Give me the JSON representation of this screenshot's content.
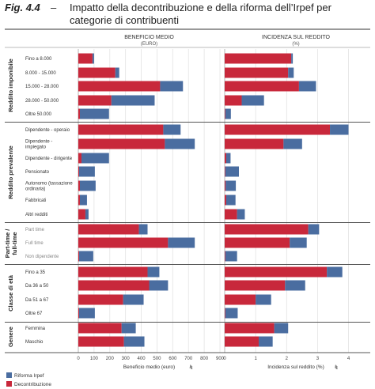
{
  "figure": {
    "label": "Fig. 4.4",
    "dash": "–",
    "title": "Impatto della decontribuzione e della riforma dell’Irpef per categorie di contribuenti"
  },
  "chart_data": {
    "type": "bar",
    "stacked": true,
    "orientation": "horizontal",
    "panels": [
      {
        "title": "BENEFICIO MEDIO",
        "subtitle": "(EURO)",
        "xlabel": "Beneficio medio (euro)",
        "xlim": [
          0,
          900
        ],
        "ticks": [
          "0",
          "100",
          "200",
          "300",
          "400",
          "500",
          "600",
          "700",
          "800",
          "900"
        ]
      },
      {
        "title": "INCIDENZA SUL REDDITO",
        "subtitle": "(%)",
        "xlabel": "Incidenza sul reddito (%)",
        "xlim": [
          0,
          4.6
        ],
        "ticks": [
          "0",
          "1",
          "2",
          "3",
          "4"
        ]
      }
    ],
    "series": [
      {
        "name": "Decontribuzione",
        "color": "#c8283b"
      },
      {
        "name": "Riforma Irpef",
        "color": "#4a6da0"
      }
    ],
    "legend_position": "bottom-left",
    "groups": [
      {
        "name": "Reddito imponibile",
        "rows": [
          {
            "label": "Fino a 8.000",
            "benefit": [
              90,
              10
            ],
            "incidence": [
              2.15,
              0.05
            ]
          },
          {
            "label": "8.000 - 15.000",
            "benefit": [
              235,
              25
            ],
            "incidence": [
              2.05,
              0.18
            ]
          },
          {
            "label": "15.000 - 28.000",
            "benefit": [
              520,
              145
            ],
            "incidence": [
              2.4,
              0.55
            ]
          },
          {
            "label": "28.000 - 50.000",
            "benefit": [
              210,
              275
            ],
            "incidence": [
              0.55,
              0.72
            ]
          },
          {
            "label": "Oltre 50.000",
            "benefit": [
              10,
              185
            ],
            "incidence": [
              0.02,
              0.18
            ]
          }
        ]
      },
      {
        "name": "Reddito prevalente",
        "rows": [
          {
            "label": "Dipendente - operaio",
            "benefit": [
              540,
              110
            ],
            "incidence": [
              3.4,
              0.6
            ]
          },
          {
            "label": "Dipendente - impiegato",
            "benefit": [
              550,
              190
            ],
            "incidence": [
              1.9,
              0.6
            ]
          },
          {
            "label": "Dipendente - dirigente",
            "benefit": [
              20,
              175
            ],
            "incidence": [
              0.05,
              0.14
            ]
          },
          {
            "label": "Pensionato",
            "benefit": [
              5,
              100
            ],
            "incidence": [
              0.02,
              0.44
            ]
          },
          {
            "label": "Autonomo (tassazione ordinaria)",
            "benefit": [
              10,
              100
            ],
            "incidence": [
              0.03,
              0.33
            ]
          },
          {
            "label": "Fabbricati",
            "benefit": [
              10,
              45
            ],
            "incidence": [
              0.05,
              0.3
            ]
          },
          {
            "label": "Altri redditi",
            "benefit": [
              45,
              20
            ],
            "incidence": [
              0.4,
              0.25
            ]
          }
        ]
      },
      {
        "name": "Part-time / full-time",
        "rows": [
          {
            "label": "Part time",
            "benefit": [
              385,
              55
            ],
            "incidence": [
              2.7,
              0.35
            ]
          },
          {
            "label": "Full time",
            "benefit": [
              570,
              170
            ],
            "incidence": [
              2.1,
              0.55
            ]
          },
          {
            "label": "Non dipendente",
            "benefit": [
              5,
              90
            ],
            "incidence": [
              0.02,
              0.38
            ]
          }
        ]
      },
      {
        "name": "Classe di età",
        "rows": [
          {
            "label": "Fino a 35",
            "benefit": [
              440,
              75
            ],
            "incidence": [
              3.3,
              0.5
            ]
          },
          {
            "label": "Da 36 a 50",
            "benefit": [
              450,
              120
            ],
            "incidence": [
              1.95,
              0.65
            ]
          },
          {
            "label": "Da 51 a 67",
            "benefit": [
              285,
              130
            ],
            "incidence": [
              1.0,
              0.5
            ]
          },
          {
            "label": "Oltre 67",
            "benefit": [
              5,
              100
            ],
            "incidence": [
              0.02,
              0.4
            ]
          }
        ]
      },
      {
        "name": "Genere",
        "rows": [
          {
            "label": "Femmina",
            "benefit": [
              275,
              90
            ],
            "incidence": [
              1.6,
              0.45
            ]
          },
          {
            "label": "Maschio",
            "benefit": [
              290,
              130
            ],
            "incidence": [
              1.1,
              0.45
            ]
          }
        ]
      }
    ]
  }
}
